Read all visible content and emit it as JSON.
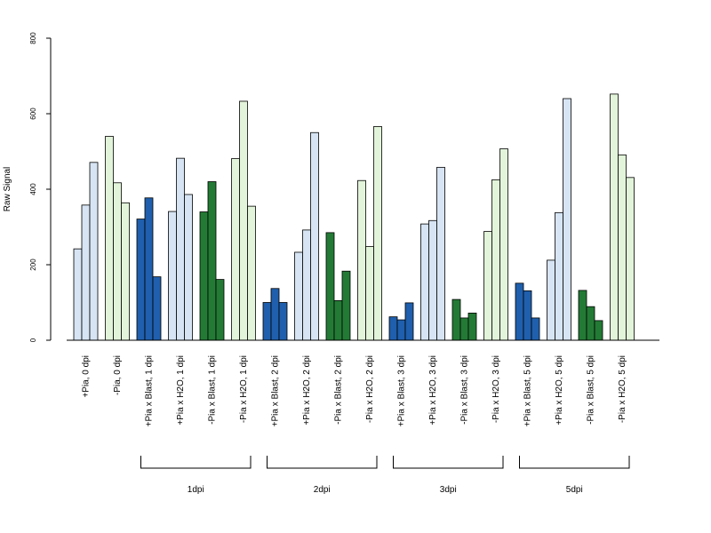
{
  "chart_data": {
    "type": "bar",
    "ylabel": "Raw Signal",
    "xlabel": "",
    "ylim": [
      0,
      800
    ],
    "yticks": [
      0,
      200,
      400,
      600,
      800
    ],
    "grid": false,
    "legend": "none",
    "categories": [
      "+Pia, 0 dpi",
      "-Pia, 0 dpi",
      "+Pia x Blast, 1 dpi",
      "+Pia x H2O, 1 dpi",
      "-Pia x Blast, 1 dpi",
      "-Pia x H2O, 1 dpi",
      "+Pia x Blast, 2 dpi",
      "+Pia x H2O, 2 dpi",
      "-Pia x Blast, 2 dpi",
      "-Pia x H2O, 2 dpi",
      "+Pia x Blast, 3 dpi",
      "+Pia x H2O, 3 dpi",
      "-Pia x Blast, 3 dpi",
      "-Pia x H2O, 3 dpi",
      "+Pia x Blast, 5 dpi",
      "+Pia x H2O, 5 dpi",
      "-Pia x Blast, 5 dpi",
      "-Pia x H2O, 5 dpi"
    ],
    "replicates": [
      [
        242,
        358,
        471
      ],
      [
        540,
        417,
        364
      ],
      [
        321,
        377,
        168
      ],
      [
        341,
        482,
        386
      ],
      [
        340,
        420,
        161
      ],
      [
        481,
        633,
        355
      ],
      [
        100,
        137,
        100
      ],
      [
        233,
        292,
        550
      ],
      [
        285,
        105,
        183
      ],
      [
        423,
        248,
        566
      ],
      [
        62,
        54,
        99
      ],
      [
        308,
        317,
        458
      ],
      [
        108,
        59,
        72
      ],
      [
        288,
        425,
        507
      ],
      [
        151,
        131,
        59
      ],
      [
        212,
        338,
        640
      ],
      [
        132,
        89,
        52
      ],
      [
        652,
        491,
        431
      ]
    ],
    "category_colors": [
      "#d6e4f3",
      "#e2f4da",
      "#1f5fad",
      "#d6e4f3",
      "#237a35",
      "#e2f4da",
      "#1f5fad",
      "#d6e4f3",
      "#237a35",
      "#e2f4da",
      "#1f5fad",
      "#d6e4f3",
      "#237a35",
      "#e2f4da",
      "#1f5fad",
      "#d6e4f3",
      "#237a35",
      "#e2f4da"
    ],
    "groups": [
      {
        "label": "1dpi",
        "first": 2,
        "last": 5
      },
      {
        "label": "2dpi",
        "first": 6,
        "last": 9
      },
      {
        "label": "3dpi",
        "first": 10,
        "last": 13
      },
      {
        "label": "5dpi",
        "first": 14,
        "last": 17
      }
    ]
  }
}
